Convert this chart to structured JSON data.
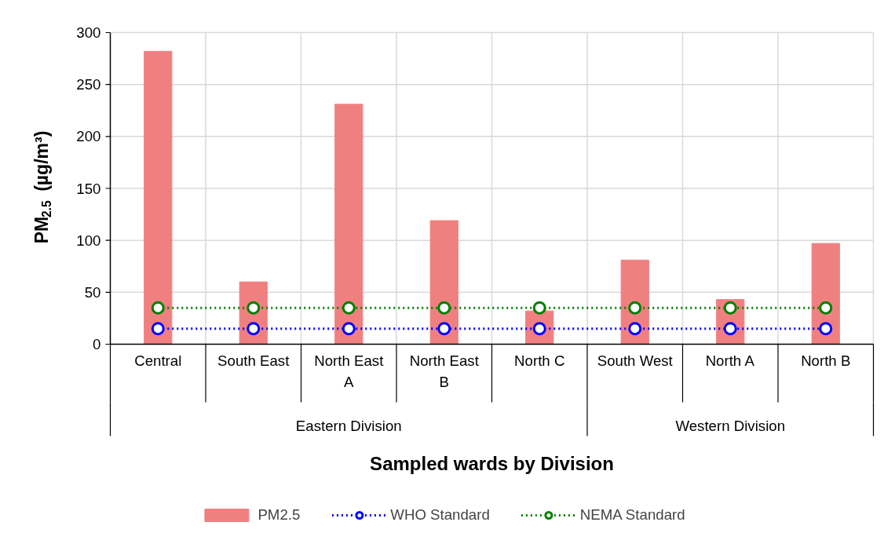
{
  "chart_data": {
    "type": "bar",
    "xlabel": "Sampled wards by Division",
    "ylabel": "PM$_{2.5}$ (µg/m³)",
    "categories": [
      "Central",
      "South East",
      "North East A",
      "North East B",
      "North C",
      "South West",
      "North A",
      "North B"
    ],
    "ylim": [
      0,
      300
    ],
    "yticks": [
      0,
      50,
      100,
      150,
      200,
      250,
      300
    ],
    "grid": true,
    "legend": "bottom",
    "series": [
      {
        "name": "PM2.5",
        "color": "#f08080",
        "values": [
          282,
          60,
          231,
          119,
          32,
          81,
          43,
          97
        ]
      },
      {
        "name": "WHO Standard",
        "type": "line",
        "color": "#0000ff",
        "marker": "circle",
        "line_style": "dotted",
        "values": [
          15,
          15,
          15,
          15,
          15,
          15,
          15,
          15
        ]
      },
      {
        "name": "NEMA Standard",
        "type": "line",
        "color": "#008000",
        "marker": "circle",
        "line_style": "dotted",
        "values": [
          35,
          35,
          35,
          35,
          35,
          35,
          35,
          35
        ]
      }
    ],
    "annotations": [
      "Eastern Division",
      "Western Division"
    ]
  }
}
